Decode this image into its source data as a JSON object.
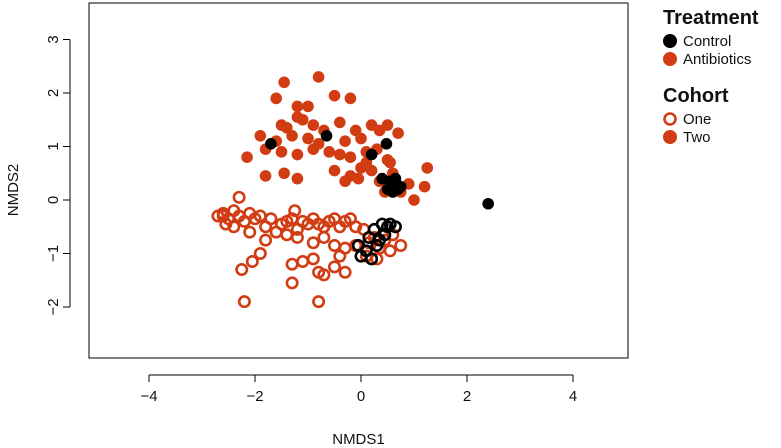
{
  "chart_data": {
    "type": "scatter",
    "xlabel": "NMDS1",
    "ylabel": "NMDS2",
    "xlim": [
      -5,
      5
    ],
    "ylim": [
      -3,
      3.5
    ],
    "xticks": [
      "−4",
      "−2",
      "0",
      "2",
      "4"
    ],
    "xtick_values": [
      -4,
      -2,
      0,
      2,
      4
    ],
    "yticks": [
      "−2",
      "−1",
      "0",
      "1",
      "2",
      "3"
    ],
    "ytick_values": [
      -2,
      -1,
      0,
      1,
      2,
      3
    ],
    "colors": {
      "Control": "#000000",
      "Antibiotics": "#d23c12"
    },
    "legend": {
      "placement": "right",
      "groups": [
        {
          "title": "Treatment",
          "entries": [
            {
              "label": "Control",
              "color": "#000000",
              "marker": "filled"
            },
            {
              "label": "Antibiotics",
              "color": "#d23c12",
              "marker": "filled"
            }
          ]
        },
        {
          "title": "Cohort",
          "entries": [
            {
              "label": "One",
              "color": "#d23c12",
              "marker": "open"
            },
            {
              "label": "Two",
              "color": "#d23c12",
              "marker": "filled"
            }
          ]
        }
      ]
    },
    "series": [
      {
        "treatment": "Antibiotics",
        "cohort": "Two",
        "marker": "filled",
        "color": "#d23c12",
        "points": [
          [
            -1.45,
            2.2
          ],
          [
            -0.8,
            2.3
          ],
          [
            -1.6,
            1.9
          ],
          [
            -1.2,
            1.75
          ],
          [
            -1.0,
            1.75
          ],
          [
            -0.5,
            1.95
          ],
          [
            -0.2,
            1.9
          ],
          [
            -1.5,
            1.4
          ],
          [
            -1.4,
            1.35
          ],
          [
            -1.2,
            1.55
          ],
          [
            -1.1,
            1.5
          ],
          [
            -0.9,
            1.4
          ],
          [
            -0.7,
            1.3
          ],
          [
            -0.4,
            1.45
          ],
          [
            -0.1,
            1.3
          ],
          [
            0.2,
            1.4
          ],
          [
            0.5,
            1.4
          ],
          [
            -1.9,
            1.2
          ],
          [
            -1.6,
            1.1
          ],
          [
            -1.3,
            1.2
          ],
          [
            -1.0,
            1.15
          ],
          [
            -0.8,
            1.05
          ],
          [
            -0.3,
            1.1
          ],
          [
            0.0,
            1.15
          ],
          [
            0.35,
            1.3
          ],
          [
            0.7,
            1.25
          ],
          [
            -2.15,
            0.8
          ],
          [
            -1.8,
            0.95
          ],
          [
            -1.5,
            0.9
          ],
          [
            -1.2,
            0.85
          ],
          [
            -0.9,
            0.95
          ],
          [
            -0.6,
            0.9
          ],
          [
            -0.4,
            0.85
          ],
          [
            -0.2,
            0.8
          ],
          [
            0.1,
            0.9
          ],
          [
            0.3,
            0.95
          ],
          [
            0.55,
            0.7
          ],
          [
            -1.8,
            0.45
          ],
          [
            -1.45,
            0.5
          ],
          [
            -1.2,
            0.4
          ],
          [
            -0.5,
            0.55
          ],
          [
            -0.2,
            0.45
          ],
          [
            0.0,
            0.6
          ],
          [
            0.2,
            0.55
          ],
          [
            0.35,
            0.35
          ],
          [
            0.6,
            0.5
          ],
          [
            1.25,
            0.6
          ],
          [
            1.2,
            0.25
          ],
          [
            0.9,
            0.3
          ],
          [
            -0.3,
            0.35
          ],
          [
            -0.05,
            0.4
          ],
          [
            0.45,
            0.15
          ],
          [
            0.75,
            0.15
          ],
          [
            1.0,
            0.0
          ],
          [
            0.5,
            0.75
          ],
          [
            0.1,
            0.7
          ]
        ]
      },
      {
        "treatment": "Control",
        "cohort": "Two",
        "marker": "filled",
        "color": "#000000",
        "points": [
          [
            -1.7,
            1.05
          ],
          [
            -0.65,
            1.2
          ],
          [
            0.2,
            0.85
          ],
          [
            0.48,
            1.05
          ],
          [
            0.4,
            0.4
          ],
          [
            0.55,
            0.35
          ],
          [
            0.65,
            0.4
          ],
          [
            0.6,
            0.15
          ],
          [
            0.7,
            0.2
          ],
          [
            0.75,
            0.25
          ],
          [
            0.5,
            0.2
          ],
          [
            2.4,
            -0.07
          ]
        ]
      },
      {
        "treatment": "Antibiotics",
        "cohort": "One",
        "marker": "open",
        "color": "#d23c12",
        "points": [
          [
            -2.3,
            0.05
          ],
          [
            -2.7,
            -0.3
          ],
          [
            -2.6,
            -0.25
          ],
          [
            -2.5,
            -0.35
          ],
          [
            -2.4,
            -0.2
          ],
          [
            -2.3,
            -0.3
          ],
          [
            -2.2,
            -0.4
          ],
          [
            -2.4,
            -0.5
          ],
          [
            -2.55,
            -0.45
          ],
          [
            -2.1,
            -0.25
          ],
          [
            -2.0,
            -0.35
          ],
          [
            -1.9,
            -0.3
          ],
          [
            -1.8,
            -0.5
          ],
          [
            -1.7,
            -0.35
          ],
          [
            -1.5,
            -0.45
          ],
          [
            -1.4,
            -0.4
          ],
          [
            -1.3,
            -0.35
          ],
          [
            -1.25,
            -0.2
          ],
          [
            -1.2,
            -0.55
          ],
          [
            -1.1,
            -0.4
          ],
          [
            -1.0,
            -0.45
          ],
          [
            -0.9,
            -0.35
          ],
          [
            -0.8,
            -0.45
          ],
          [
            -0.7,
            -0.5
          ],
          [
            -0.6,
            -0.4
          ],
          [
            -0.5,
            -0.35
          ],
          [
            -0.4,
            -0.5
          ],
          [
            -0.3,
            -0.4
          ],
          [
            -0.2,
            -0.35
          ],
          [
            -0.1,
            -0.5
          ],
          [
            0.05,
            -0.55
          ],
          [
            -2.1,
            -0.6
          ],
          [
            -1.8,
            -0.75
          ],
          [
            -1.6,
            -0.6
          ],
          [
            -1.4,
            -0.65
          ],
          [
            -1.2,
            -0.7
          ],
          [
            -0.9,
            -0.8
          ],
          [
            -0.7,
            -0.7
          ],
          [
            -0.5,
            -0.85
          ],
          [
            -0.3,
            -0.9
          ],
          [
            -0.1,
            -0.85
          ],
          [
            0.15,
            -0.8
          ],
          [
            0.25,
            -0.7
          ],
          [
            0.35,
            -0.9
          ],
          [
            0.45,
            -0.75
          ],
          [
            0.6,
            -0.65
          ],
          [
            0.75,
            -0.85
          ],
          [
            0.55,
            -0.95
          ],
          [
            -2.25,
            -1.3
          ],
          [
            -2.05,
            -1.15
          ],
          [
            -1.9,
            -1.0
          ],
          [
            -1.3,
            -1.2
          ],
          [
            -1.1,
            -1.15
          ],
          [
            -0.9,
            -1.1
          ],
          [
            -0.8,
            -1.35
          ],
          [
            -0.7,
            -1.4
          ],
          [
            -0.5,
            -1.25
          ],
          [
            -0.3,
            -1.35
          ],
          [
            0.1,
            -1.05
          ],
          [
            0.3,
            -1.1
          ],
          [
            -1.3,
            -1.55
          ],
          [
            -2.2,
            -1.9
          ],
          [
            -0.8,
            -1.9
          ],
          [
            -2.6,
            -0.3
          ],
          [
            -0.4,
            -1.05
          ]
        ]
      },
      {
        "treatment": "Control",
        "cohort": "One",
        "marker": "open",
        "color": "#000000",
        "points": [
          [
            0.1,
            -0.95
          ],
          [
            0.2,
            -1.1
          ],
          [
            0.3,
            -0.85
          ],
          [
            0.45,
            -0.65
          ],
          [
            0.5,
            -0.5
          ],
          [
            0.4,
            -0.45
          ],
          [
            0.55,
            -0.45
          ],
          [
            0.25,
            -0.55
          ],
          [
            0.65,
            -0.5
          ],
          [
            0.15,
            -0.7
          ],
          [
            0.35,
            -0.75
          ],
          [
            -0.05,
            -0.85
          ],
          [
            0.0,
            -1.05
          ]
        ]
      }
    ]
  }
}
